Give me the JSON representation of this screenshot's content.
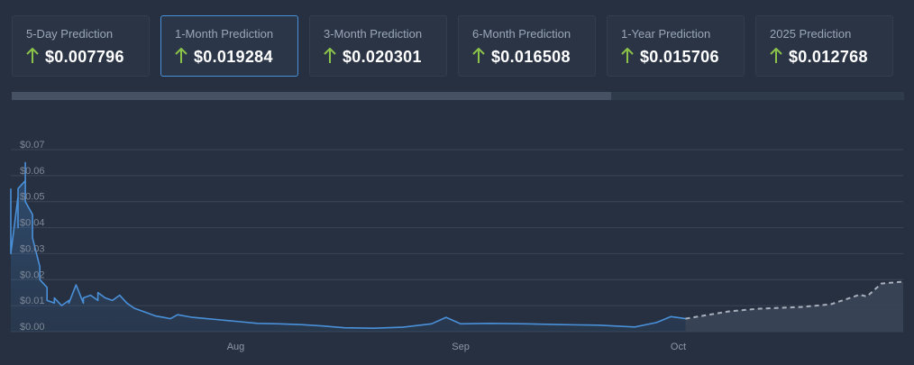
{
  "predictions": [
    {
      "label": "5-Day Prediction",
      "value": "$0.007796",
      "direction": "up"
    },
    {
      "label": "1-Month Prediction",
      "value": "$0.019284",
      "direction": "up",
      "active": true
    },
    {
      "label": "3-Month Prediction",
      "value": "$0.020301",
      "direction": "up"
    },
    {
      "label": "6-Month Prediction",
      "value": "$0.016508",
      "direction": "up"
    },
    {
      "label": "1-Year Prediction",
      "value": "$0.015706",
      "direction": "up"
    },
    {
      "label": "2025 Prediction",
      "value": "$0.012768",
      "direction": "up"
    }
  ],
  "colors": {
    "background": "#263040",
    "card": "#2a3445",
    "active_border": "#4a90d9",
    "arrow_up": "#8bc34a",
    "history_line": "#4a90d9",
    "prediction_line": "#a8b0bc",
    "grid": "#3a4557"
  },
  "scroll": {
    "fraction": 0.672
  },
  "chart_data": {
    "type": "line",
    "yticks": [
      "$0.00",
      "$0.01",
      "$0.02",
      "$0.03",
      "$0.04",
      "$0.05",
      "$0.06",
      "$0.07"
    ],
    "xticks": [
      {
        "label": "Aug",
        "x": "2022-08-01"
      },
      {
        "label": "Sep",
        "x": "2022-09-01"
      },
      {
        "label": "Oct",
        "x": "2022-10-01"
      }
    ],
    "ylim": [
      0,
      0.07
    ],
    "xlim": [
      "2022-07-01",
      "2022-11-01"
    ],
    "grid": true,
    "series": [
      {
        "style": "solid",
        "x": [
          "2022-07-01",
          "2022-07-01",
          "2022-07-01",
          "2022-07-02",
          "2022-07-02",
          "2022-07-02",
          "2022-07-02",
          "2022-07-02",
          "2022-07-03",
          "2022-07-03",
          "2022-07-03",
          "2022-07-03",
          "2022-07-04",
          "2022-07-04",
          "2022-07-04",
          "2022-07-05",
          "2022-07-05",
          "2022-07-06",
          "2022-07-06",
          "2022-07-07",
          "2022-07-07",
          "2022-07-08",
          "2022-07-09",
          "2022-07-09",
          "2022-07-10",
          "2022-07-11",
          "2022-07-11",
          "2022-07-12",
          "2022-07-13",
          "2022-07-13",
          "2022-07-14",
          "2022-07-15",
          "2022-07-16",
          "2022-07-17",
          "2022-07-18",
          "2022-07-19",
          "2022-07-20",
          "2022-07-21",
          "2022-07-22",
          "2022-07-23",
          "2022-07-24",
          "2022-07-26",
          "2022-07-28",
          "2022-07-30",
          "2022-08-01",
          "2022-08-04",
          "2022-08-07",
          "2022-08-10",
          "2022-08-13",
          "2022-08-16",
          "2022-08-20",
          "2022-08-24",
          "2022-08-28",
          "2022-08-30",
          "2022-09-01",
          "2022-09-05",
          "2022-09-10",
          "2022-09-15",
          "2022-09-20",
          "2022-09-25",
          "2022-09-28",
          "2022-09-30",
          "2022-10-02"
        ],
        "y": [
          0.055,
          0.05,
          0.03,
          0.052,
          0.04,
          0.053,
          0.045,
          0.055,
          0.058,
          0.065,
          0.062,
          0.05,
          0.045,
          0.04,
          0.036,
          0.025,
          0.02,
          0.017,
          0.012,
          0.011,
          0.013,
          0.01,
          0.012,
          0.011,
          0.018,
          0.011,
          0.013,
          0.014,
          0.012,
          0.015,
          0.013,
          0.012,
          0.014,
          0.011,
          0.009,
          0.008,
          0.007,
          0.006,
          0.0055,
          0.005,
          0.0065,
          0.0055,
          0.005,
          0.0045,
          0.004,
          0.0032,
          0.003,
          0.0027,
          0.0022,
          0.0015,
          0.0013,
          0.0017,
          0.003,
          0.0055,
          0.003,
          0.0032,
          0.003,
          0.0027,
          0.0025,
          0.0018,
          0.0035,
          0.0058,
          0.005
        ]
      },
      {
        "style": "dashed",
        "x": [
          "2022-10-02",
          "2022-10-08",
          "2022-10-12",
          "2022-10-18",
          "2022-10-22",
          "2022-10-26",
          "2022-10-27",
          "2022-10-29",
          "2022-11-01"
        ],
        "y": [
          0.005,
          0.0078,
          0.0088,
          0.0095,
          0.0105,
          0.0142,
          0.0135,
          0.0185,
          0.0192
        ]
      }
    ]
  }
}
